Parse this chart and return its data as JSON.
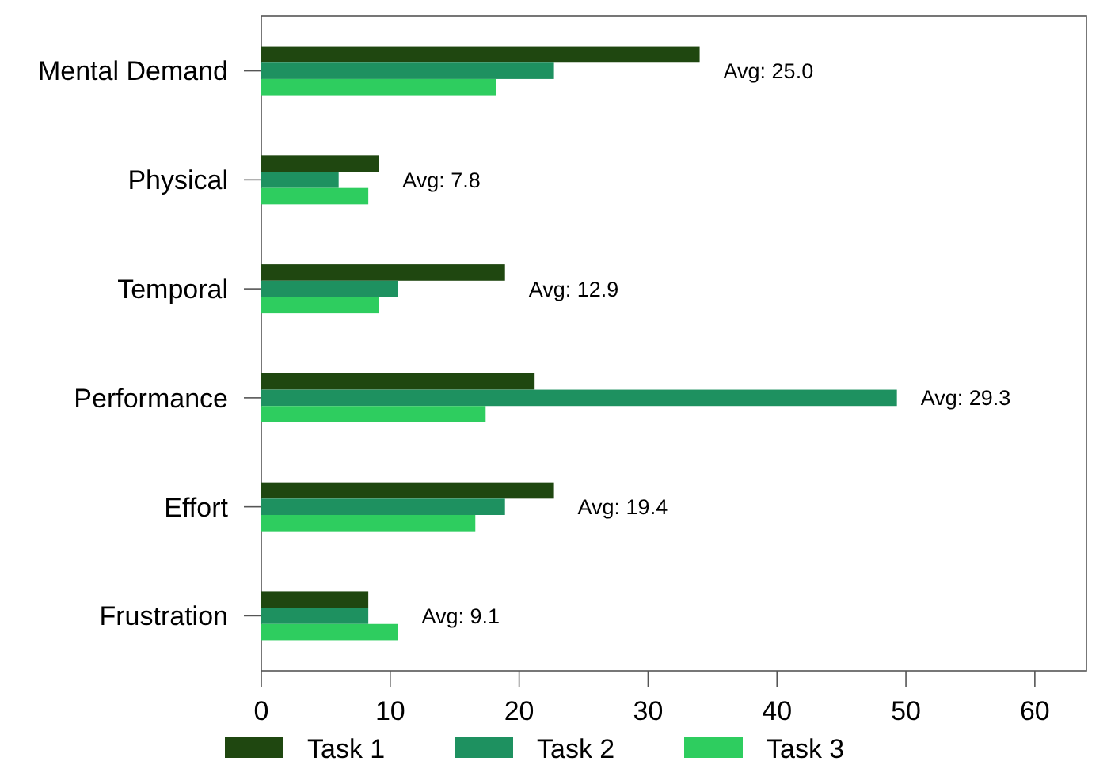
{
  "chart_data": {
    "type": "bar",
    "orientation": "horizontal",
    "categories": [
      "Mental Demand",
      "Physical",
      "Temporal",
      "Performance",
      "Effort",
      "Frustration"
    ],
    "series": [
      {
        "name": "Task 1",
        "color": "#1f4710",
        "values": [
          34.0,
          9.1,
          18.9,
          21.2,
          22.7,
          8.3
        ]
      },
      {
        "name": "Task 2",
        "color": "#1e9160",
        "values": [
          22.7,
          6.0,
          10.6,
          49.3,
          18.9,
          8.3
        ]
      },
      {
        "name": "Task 3",
        "color": "#2ecd5f",
        "values": [
          18.2,
          8.3,
          9.1,
          17.4,
          16.6,
          10.6
        ]
      }
    ],
    "xlim": [
      0,
      64
    ],
    "xticks": [
      0,
      10,
      20,
      30,
      40,
      50,
      60
    ],
    "grid": false,
    "legend": "bottom",
    "annotations": [
      "Avg: 25.0",
      "Avg: 7.8",
      "Avg: 12.9",
      "Avg: 29.3",
      "Avg: 19.4",
      "Avg: 9.1"
    ]
  }
}
